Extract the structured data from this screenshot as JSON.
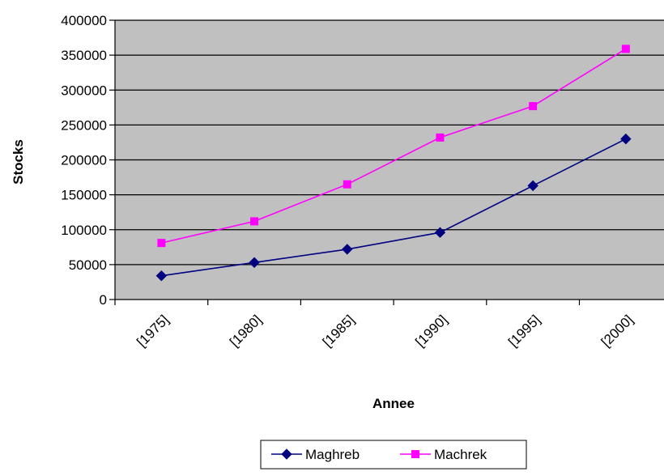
{
  "chart_data": {
    "type": "line",
    "title": "",
    "xlabel": "Annee",
    "ylabel": "Stocks",
    "categories": [
      "[1975]",
      "[1980]",
      "[1985]",
      "[1990]",
      "[1995]",
      "[2000]"
    ],
    "ylim": [
      0,
      400000
    ],
    "yticks": [
      0,
      50000,
      100000,
      150000,
      200000,
      250000,
      300000,
      350000,
      400000
    ],
    "grid": true,
    "plot_background": "#c0c0c0",
    "legend_position": "bottom",
    "series": [
      {
        "name": "Maghreb",
        "color": "#000080",
        "marker": "diamond",
        "values": [
          34000,
          53000,
          72000,
          96000,
          163000,
          230000
        ]
      },
      {
        "name": "Machrek",
        "color": "#ff00ff",
        "marker": "square",
        "values": [
          81000,
          112000,
          165000,
          232000,
          277000,
          359000
        ]
      }
    ]
  }
}
